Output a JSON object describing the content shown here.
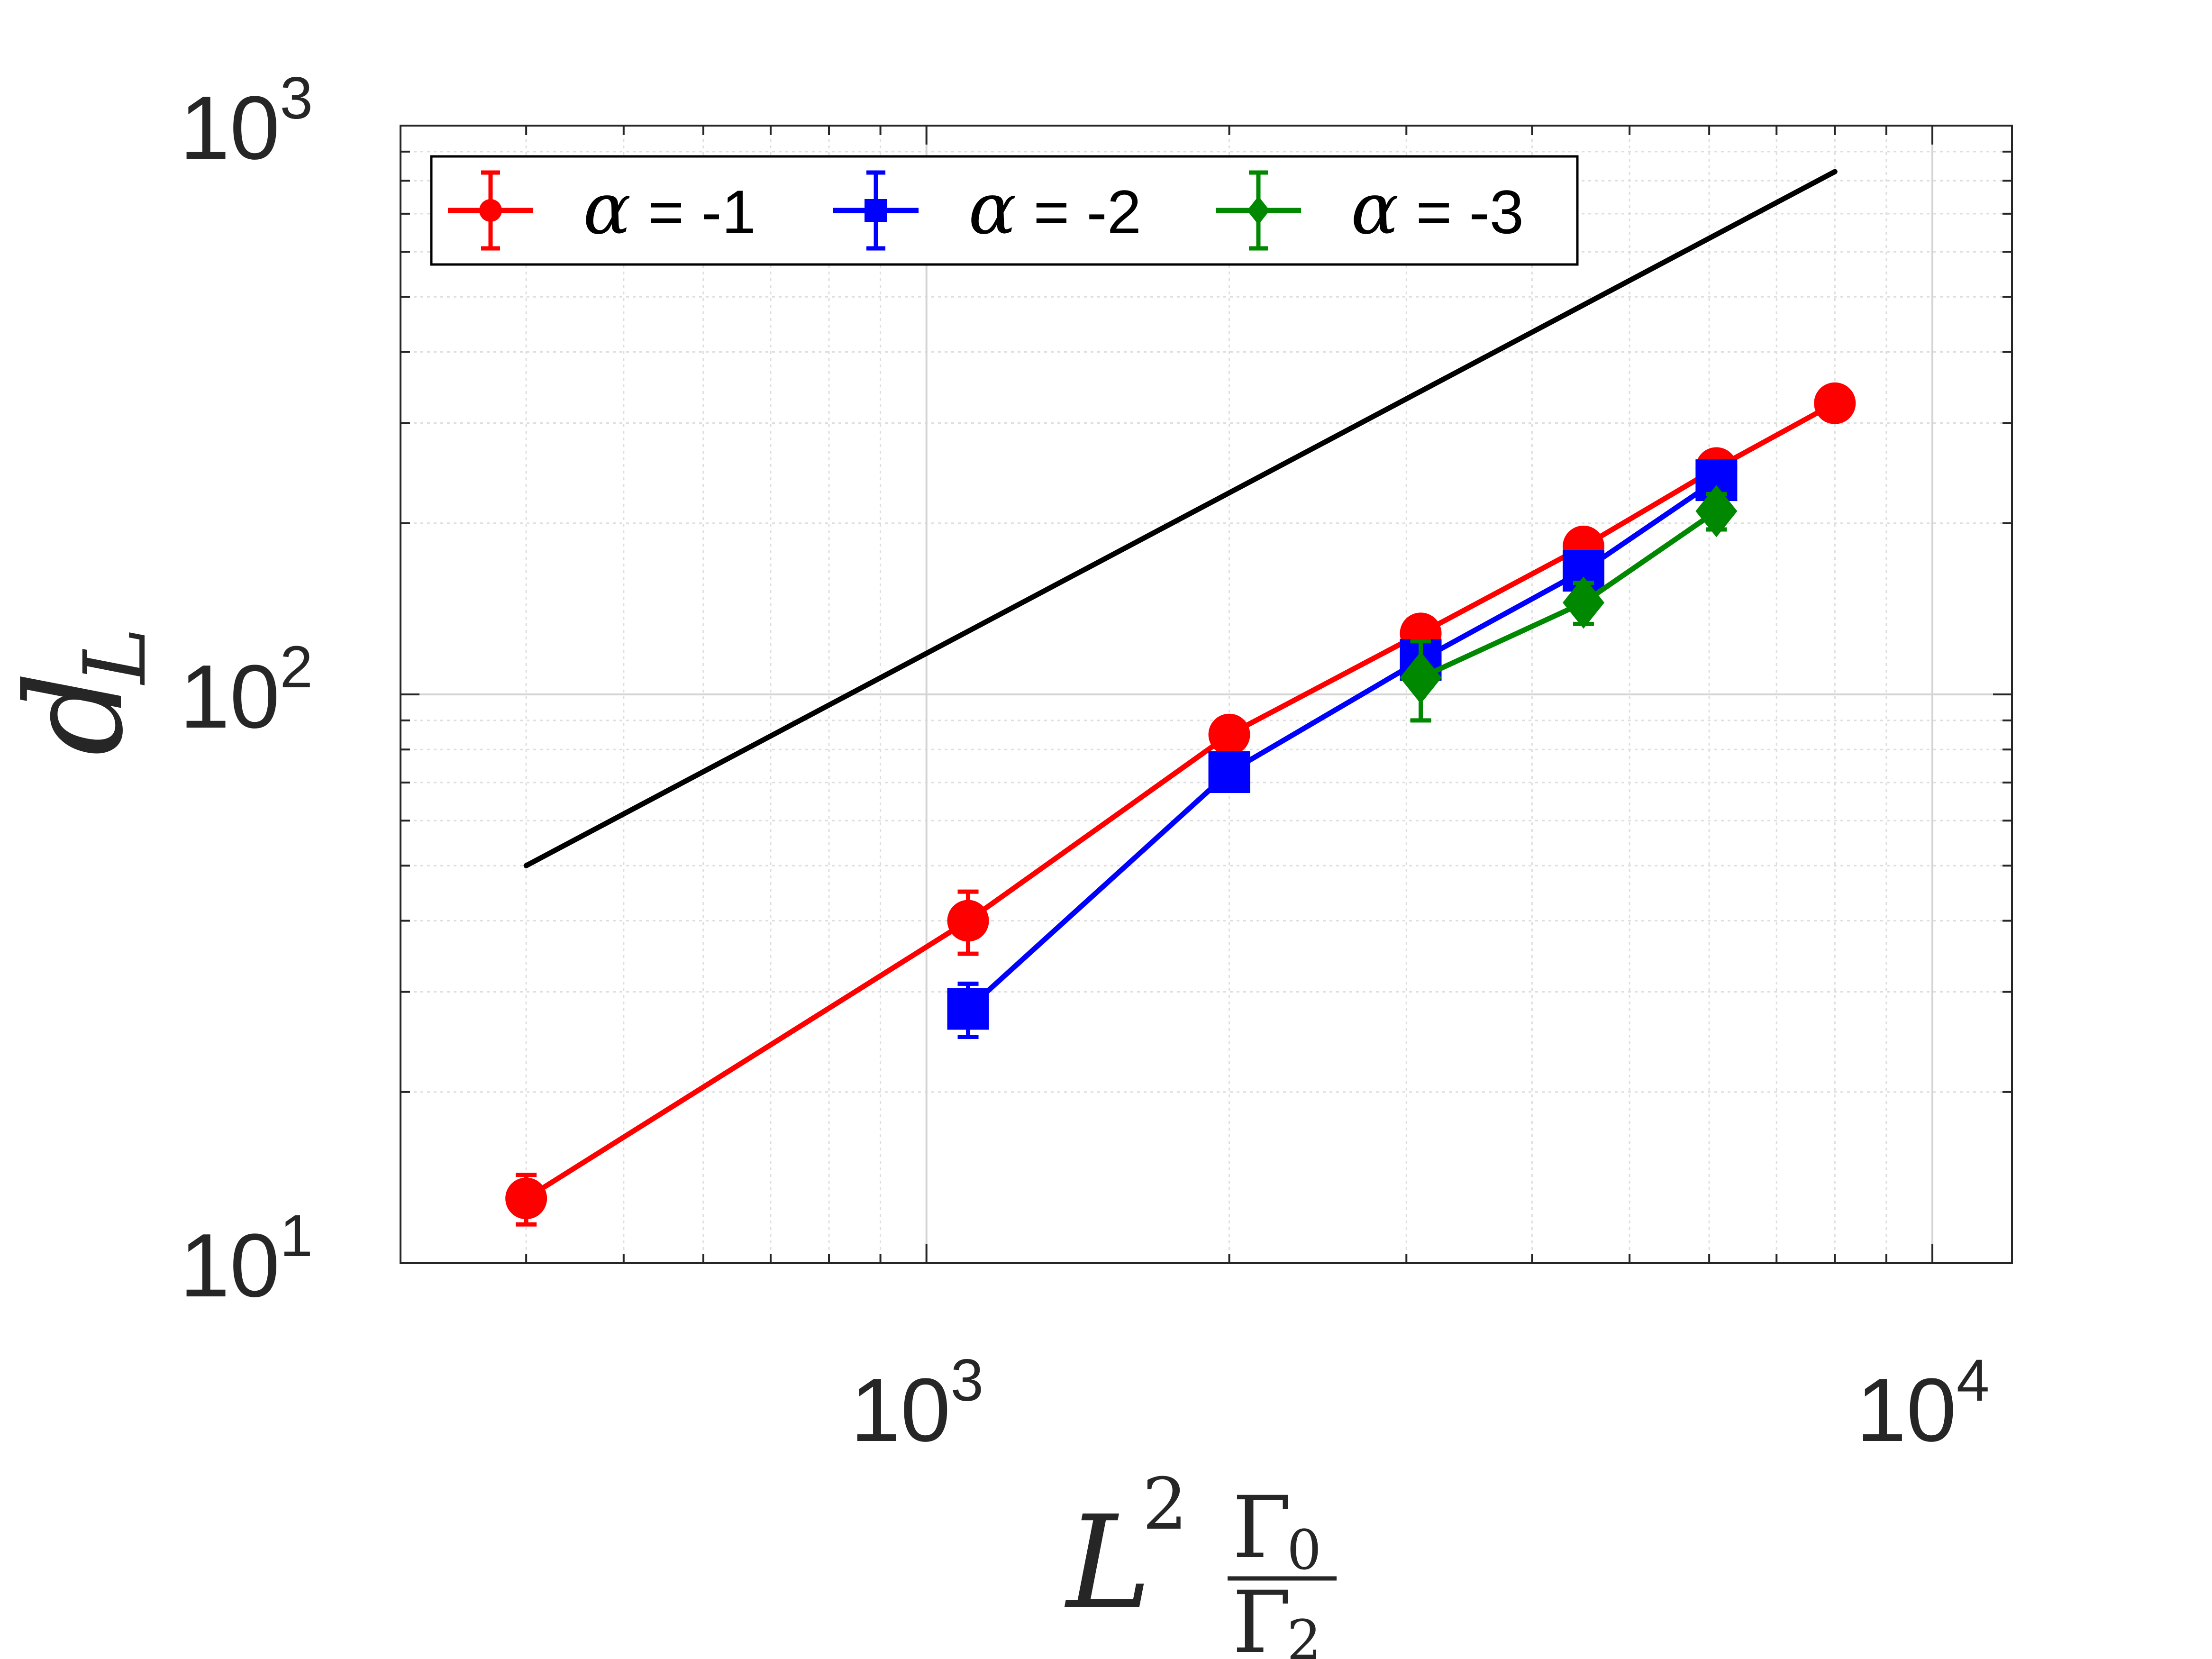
{
  "chart_data": {
    "type": "line",
    "x_scale": "log",
    "y_scale": "log",
    "xlim": [
      300,
      12000
    ],
    "ylim": [
      10,
      1000
    ],
    "grid": true,
    "legend_location": "top-left",
    "x_ticks": [
      {
        "value": 1000,
        "base": "10",
        "exp": "3"
      },
      {
        "value": 10000,
        "base": "10",
        "exp": "4"
      }
    ],
    "y_ticks": [
      {
        "value": 10,
        "base": "10",
        "exp": "1"
      },
      {
        "value": 100,
        "base": "10",
        "exp": "2"
      },
      {
        "value": 1000,
        "base": "10",
        "exp": "3"
      }
    ],
    "xlabel": {
      "main": "L",
      "sup": "2",
      "num": "Γ",
      "num_sub": "0",
      "den": "Γ",
      "den_sub": "2"
    },
    "ylabel": {
      "main": "d",
      "sub": "L"
    },
    "series": [
      {
        "name": "α = -1",
        "legend_symbol": "α",
        "legend_text": " = -1",
        "color": "#ff0000",
        "marker": "circle",
        "x": [
          400,
          1100,
          2000,
          3100,
          4500,
          6100,
          8000
        ],
        "y": [
          13,
          40,
          85,
          128,
          182,
          250,
          325
        ],
        "err": [
          1.3,
          5,
          4,
          6,
          8,
          12,
          12
        ]
      },
      {
        "name": "α = -2",
        "legend_symbol": "α",
        "legend_text": " = -2",
        "color": "#0000ff",
        "marker": "square",
        "x": [
          1100,
          2000,
          3100,
          4500,
          6100
        ],
        "y": [
          28,
          73,
          115,
          165,
          238
        ],
        "err": [
          3,
          3,
          6,
          12,
          14
        ]
      },
      {
        "name": "α = -3",
        "legend_symbol": "α",
        "legend_text": " = -3",
        "color": "#008800",
        "marker": "diamond",
        "x": [
          3100,
          4500,
          6100
        ],
        "y": [
          107,
          145,
          210
        ],
        "err": [
          17,
          12,
          15
        ]
      }
    ],
    "reference_line": {
      "color": "#000000",
      "x": [
        400,
        8000
      ],
      "y": [
        50,
        830
      ]
    }
  }
}
